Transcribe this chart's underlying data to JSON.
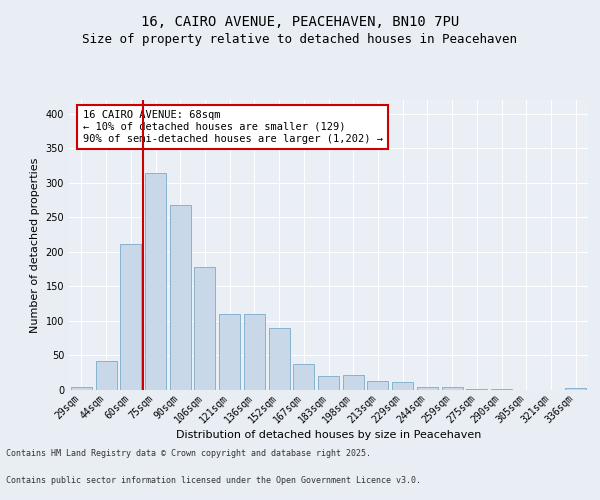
{
  "title_line1": "16, CAIRO AVENUE, PEACEHAVEN, BN10 7PU",
  "title_line2": "Size of property relative to detached houses in Peacehaven",
  "xlabel": "Distribution of detached houses by size in Peacehaven",
  "ylabel": "Number of detached properties",
  "categories": [
    "29sqm",
    "44sqm",
    "60sqm",
    "75sqm",
    "90sqm",
    "106sqm",
    "121sqm",
    "136sqm",
    "152sqm",
    "167sqm",
    "183sqm",
    "198sqm",
    "213sqm",
    "229sqm",
    "244sqm",
    "259sqm",
    "275sqm",
    "290sqm",
    "305sqm",
    "321sqm",
    "336sqm"
  ],
  "values": [
    5,
    42,
    212,
    315,
    268,
    178,
    110,
    110,
    90,
    38,
    20,
    22,
    13,
    11,
    4,
    5,
    2,
    1,
    0,
    0,
    3
  ],
  "bar_color": "#c8d8e8",
  "bar_edge_color": "#7aaac8",
  "vline_color": "#cc0000",
  "vline_x": 2.5,
  "annotation_text": "16 CAIRO AVENUE: 68sqm\n← 10% of detached houses are smaller (129)\n90% of semi-detached houses are larger (1,202) →",
  "annotation_box_color": "#ffffff",
  "annotation_box_edge": "#cc0000",
  "footer1": "Contains HM Land Registry data © Crown copyright and database right 2025.",
  "footer2": "Contains public sector information licensed under the Open Government Licence v3.0.",
  "ylim": [
    0,
    420
  ],
  "yticks": [
    0,
    50,
    100,
    150,
    200,
    250,
    300,
    350,
    400
  ],
  "background_color": "#e8eef4",
  "plot_bg_color": "#eaeff5",
  "grid_color": "#ffffff",
  "title_fontsize": 10,
  "subtitle_fontsize": 9,
  "label_fontsize": 8,
  "tick_fontsize": 7,
  "annot_fontsize": 7.5,
  "footer_fontsize": 6
}
